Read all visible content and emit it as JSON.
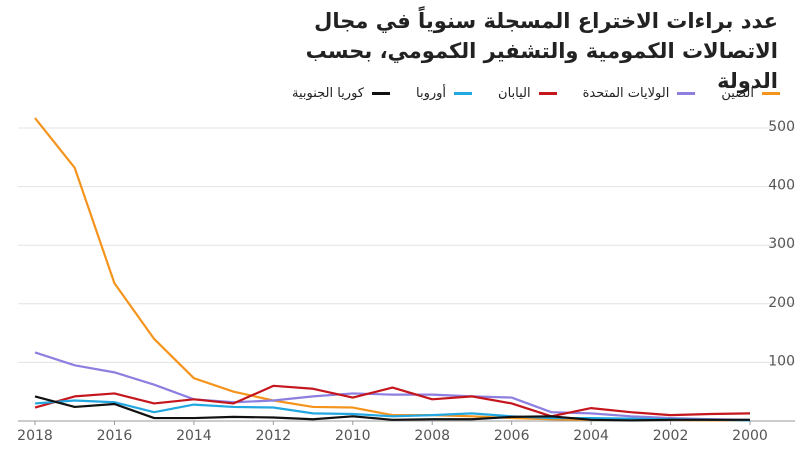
{
  "chart_data": {
    "type": "line",
    "title": "عدد براءات الاختراع المسجلة سنوياً في مجال الاتصالات الكمومية والتشفير الكمومي، بحسب الدولة",
    "x": [
      2018,
      2017,
      2016,
      2015,
      2014,
      2013,
      2012,
      2011,
      2010,
      2009,
      2008,
      2007,
      2006,
      2005,
      2004,
      2003,
      2002,
      2001,
      2000
    ],
    "series": [
      {
        "name": "الصين",
        "color": "#f5941d",
        "values": [
          517,
          432,
          235,
          140,
          73,
          50,
          35,
          24,
          23,
          10,
          10,
          8,
          5,
          3,
          2,
          3,
          2,
          1,
          1
        ]
      },
      {
        "name": "الولايات المتحدة",
        "color": "#8c7fe0",
        "values": [
          117,
          95,
          83,
          62,
          37,
          32,
          35,
          42,
          47,
          45,
          45,
          42,
          40,
          15,
          13,
          8,
          5,
          3,
          2
        ]
      },
      {
        "name": "اليابان",
        "color": "#c4161c",
        "values": [
          23,
          42,
          47,
          30,
          37,
          30,
          60,
          55,
          40,
          57,
          37,
          42,
          30,
          8,
          22,
          15,
          10,
          12,
          13
        ]
      },
      {
        "name": "أوروبا",
        "color": "#22a7e0",
        "values": [
          30,
          35,
          32,
          15,
          28,
          24,
          23,
          13,
          12,
          8,
          10,
          13,
          8,
          5,
          5,
          4,
          3,
          2,
          1
        ]
      },
      {
        "name": "كوريا الجنوبية",
        "color": "#111111",
        "values": [
          42,
          24,
          29,
          5,
          5,
          7,
          6,
          3,
          8,
          2,
          3,
          3,
          7,
          8,
          2,
          1,
          2,
          2,
          2
        ]
      }
    ],
    "xlim": [
      2018,
      2000
    ],
    "xticks": [
      2018,
      2016,
      2014,
      2012,
      2010,
      2008,
      2006,
      2004,
      2002,
      2000
    ],
    "ylim": [
      0,
      530
    ],
    "yticks": [
      100,
      200,
      300,
      400,
      500
    ],
    "grid": true
  }
}
